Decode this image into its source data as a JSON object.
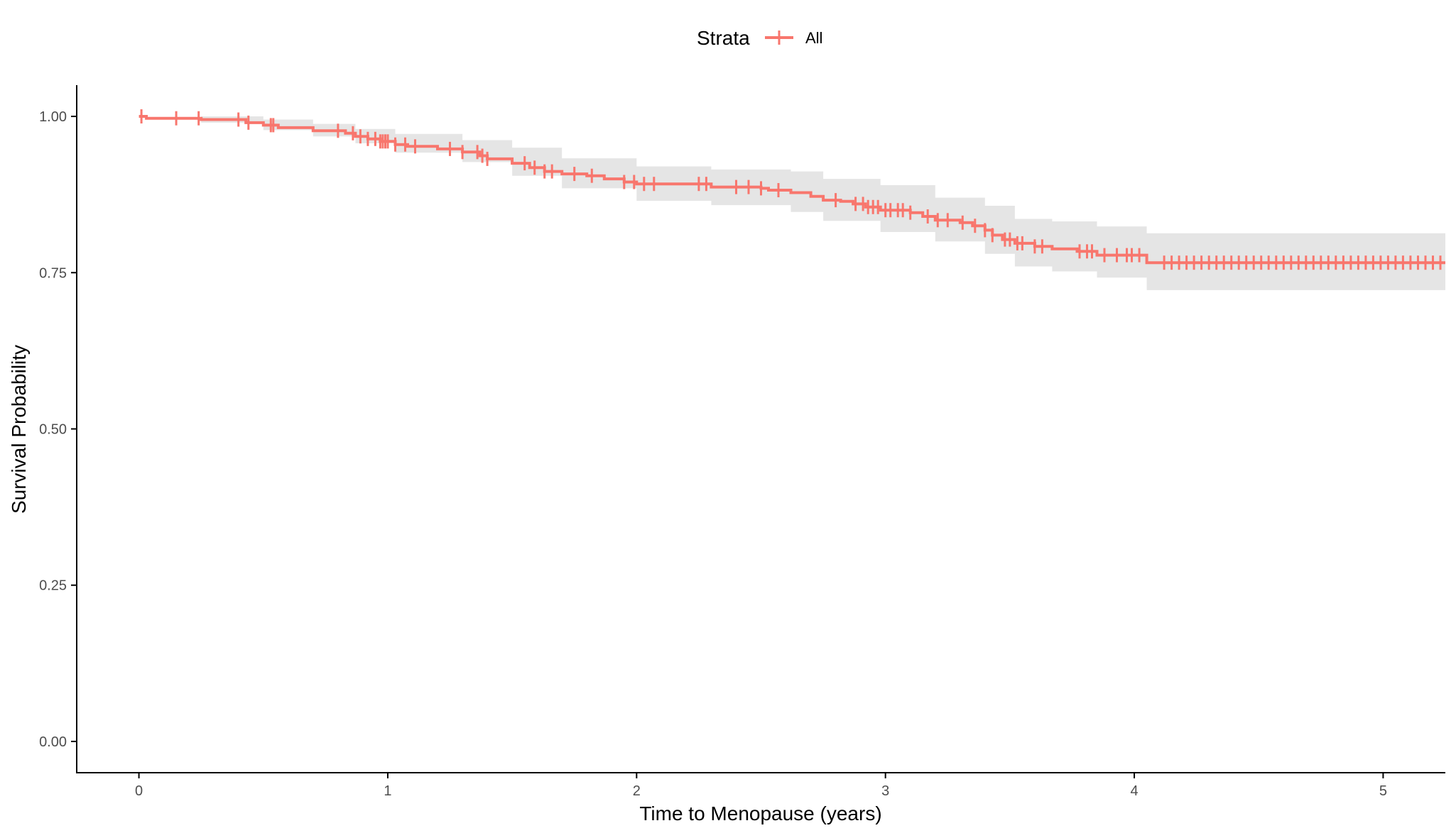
{
  "chart_data": {
    "type": "line",
    "subtype": "kaplan-meier survival curve with 95% confidence band and censor marks",
    "xlabel": "Time to Menopause (years)",
    "ylabel": "Survival Probability",
    "xlim": [
      -0.25,
      5.25
    ],
    "ylim": [
      -0.05,
      1.05
    ],
    "x_ticks": [
      0,
      1,
      2,
      3,
      4,
      5
    ],
    "y_ticks": [
      0.0,
      0.25,
      0.5,
      0.75,
      1.0
    ],
    "x_tick_labels": [
      "0",
      "1",
      "2",
      "3",
      "4",
      "5"
    ],
    "y_tick_labels": [
      "0.00",
      "0.25",
      "0.50",
      "0.75",
      "1.00"
    ],
    "grid": false,
    "legend": {
      "title": "Strata",
      "placement": "top-center",
      "entries": [
        "All"
      ]
    },
    "colors": {
      "series": "#F8766D",
      "band": "#E5E5E5",
      "axis": "#000000"
    },
    "series": [
      {
        "name": "All",
        "steps": [
          [
            0.0,
            1.0
          ],
          [
            0.03,
            0.997
          ],
          [
            0.25,
            0.995
          ],
          [
            0.43,
            0.99
          ],
          [
            0.5,
            0.986
          ],
          [
            0.56,
            0.982
          ],
          [
            0.7,
            0.977
          ],
          [
            0.83,
            0.973
          ],
          [
            0.87,
            0.968
          ],
          [
            0.92,
            0.964
          ],
          [
            0.97,
            0.96
          ],
          [
            1.03,
            0.955
          ],
          [
            1.08,
            0.952
          ],
          [
            1.2,
            0.948
          ],
          [
            1.3,
            0.943
          ],
          [
            1.37,
            0.937
          ],
          [
            1.4,
            0.932
          ],
          [
            1.5,
            0.925
          ],
          [
            1.57,
            0.918
          ],
          [
            1.63,
            0.912
          ],
          [
            1.7,
            0.908
          ],
          [
            1.8,
            0.905
          ],
          [
            1.87,
            0.9
          ],
          [
            1.95,
            0.895
          ],
          [
            2.0,
            0.892
          ],
          [
            2.3,
            0.887
          ],
          [
            2.5,
            0.885
          ],
          [
            2.53,
            0.882
          ],
          [
            2.62,
            0.878
          ],
          [
            2.7,
            0.872
          ],
          [
            2.75,
            0.866
          ],
          [
            2.82,
            0.864
          ],
          [
            2.87,
            0.86
          ],
          [
            2.92,
            0.855
          ],
          [
            2.98,
            0.85
          ],
          [
            3.1,
            0.846
          ],
          [
            3.15,
            0.84
          ],
          [
            3.2,
            0.834
          ],
          [
            3.3,
            0.83
          ],
          [
            3.35,
            0.825
          ],
          [
            3.4,
            0.818
          ],
          [
            3.43,
            0.81
          ],
          [
            3.47,
            0.803
          ],
          [
            3.52,
            0.797
          ],
          [
            3.6,
            0.792
          ],
          [
            3.67,
            0.788
          ],
          [
            3.77,
            0.784
          ],
          [
            3.85,
            0.778
          ],
          [
            4.05,
            0.766
          ],
          [
            5.25,
            0.766
          ]
        ],
        "ci_lower": [
          [
            0.0,
            1.0
          ],
          [
            0.25,
            0.99
          ],
          [
            0.5,
            0.978
          ],
          [
            0.7,
            0.968
          ],
          [
            0.87,
            0.957
          ],
          [
            1.03,
            0.942
          ],
          [
            1.3,
            0.927
          ],
          [
            1.5,
            0.905
          ],
          [
            1.7,
            0.885
          ],
          [
            2.0,
            0.865
          ],
          [
            2.3,
            0.858
          ],
          [
            2.62,
            0.847
          ],
          [
            2.75,
            0.833
          ],
          [
            2.98,
            0.815
          ],
          [
            3.2,
            0.8
          ],
          [
            3.4,
            0.78
          ],
          [
            3.52,
            0.76
          ],
          [
            3.67,
            0.752
          ],
          [
            3.85,
            0.742
          ],
          [
            4.05,
            0.722
          ],
          [
            5.25,
            0.722
          ]
        ],
        "ci_upper": [
          [
            0.0,
            1.0
          ],
          [
            0.25,
            1.0
          ],
          [
            0.5,
            0.995
          ],
          [
            0.7,
            0.988
          ],
          [
            0.87,
            0.98
          ],
          [
            1.03,
            0.972
          ],
          [
            1.3,
            0.962
          ],
          [
            1.5,
            0.95
          ],
          [
            1.7,
            0.933
          ],
          [
            2.0,
            0.92
          ],
          [
            2.3,
            0.915
          ],
          [
            2.62,
            0.912
          ],
          [
            2.75,
            0.9
          ],
          [
            2.98,
            0.89
          ],
          [
            3.2,
            0.87
          ],
          [
            3.4,
            0.857
          ],
          [
            3.52,
            0.836
          ],
          [
            3.67,
            0.832
          ],
          [
            3.85,
            0.824
          ],
          [
            4.05,
            0.813
          ],
          [
            5.25,
            0.813
          ]
        ],
        "censor_times": [
          0.01,
          0.15,
          0.24,
          0.4,
          0.44,
          0.53,
          0.54,
          0.8,
          0.86,
          0.89,
          0.92,
          0.95,
          0.97,
          0.98,
          0.99,
          1.0,
          1.03,
          1.07,
          1.11,
          1.25,
          1.3,
          1.36,
          1.38,
          1.4,
          1.55,
          1.59,
          1.63,
          1.66,
          1.75,
          1.82,
          1.95,
          1.99,
          2.03,
          2.07,
          2.25,
          2.28,
          2.4,
          2.45,
          2.5,
          2.57,
          2.8,
          2.88,
          2.91,
          2.93,
          2.95,
          2.97,
          3.0,
          3.02,
          3.05,
          3.07,
          3.1,
          3.17,
          3.21,
          3.25,
          3.31,
          3.36,
          3.4,
          3.43,
          3.48,
          3.5,
          3.53,
          3.55,
          3.6,
          3.63,
          3.78,
          3.81,
          3.83,
          3.88,
          3.93,
          3.97,
          3.99,
          4.02,
          4.12,
          4.15,
          4.18,
          4.21,
          4.24,
          4.27,
          4.3,
          4.33,
          4.36,
          4.39,
          4.42,
          4.45,
          4.48,
          4.51,
          4.54,
          4.57,
          4.6,
          4.63,
          4.66,
          4.69,
          4.72,
          4.75,
          4.78,
          4.81,
          4.84,
          4.87,
          4.9,
          4.93,
          4.96,
          4.99,
          5.02,
          5.05,
          5.08,
          5.11,
          5.14,
          5.17,
          5.2,
          5.23
        ]
      }
    ]
  }
}
